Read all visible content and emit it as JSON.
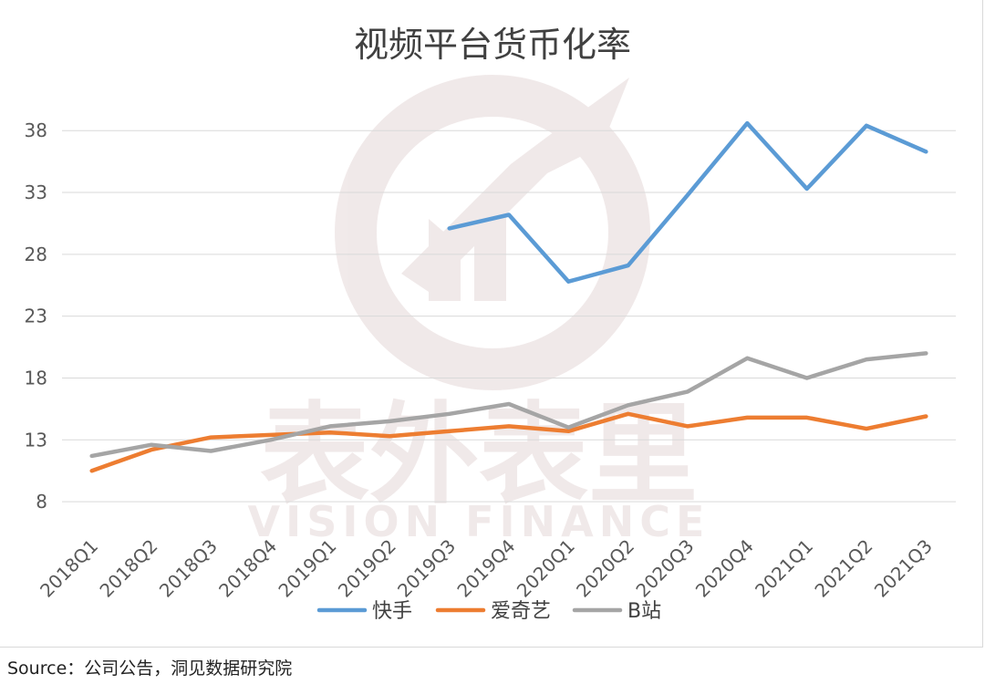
{
  "chart_data": {
    "type": "line",
    "title": "视频平台货币化率",
    "xlabel": "",
    "ylabel": "",
    "categories": [
      "2018Q1",
      "2018Q2",
      "2018Q3",
      "2018Q4",
      "2019Q1",
      "2019Q2",
      "2019Q3",
      "2019Q4",
      "2020Q1",
      "2020Q2",
      "2020Q3",
      "2020Q4",
      "2021Q1",
      "2021Q2",
      "2021Q3"
    ],
    "yticks": [
      8,
      13,
      18,
      23,
      28,
      33,
      38
    ],
    "ylim": [
      5.5,
      42
    ],
    "grid": true,
    "legend_position": "bottom",
    "series": [
      {
        "name": "快手",
        "color": "#5b9bd5",
        "values": [
          null,
          null,
          null,
          null,
          null,
          null,
          30.1,
          31.2,
          25.8,
          27.1,
          32.8,
          38.6,
          33.3,
          38.4,
          36.3
        ]
      },
      {
        "name": "爱奇艺",
        "color": "#ed7d31",
        "values": [
          10.5,
          12.2,
          13.2,
          13.4,
          13.6,
          13.3,
          13.7,
          14.1,
          13.7,
          15.1,
          14.1,
          14.8,
          14.8,
          13.9,
          14.9
        ]
      },
      {
        "name": "B站",
        "color": "#a5a5a5",
        "values": [
          11.7,
          12.6,
          12.1,
          13.0,
          14.1,
          14.5,
          15.1,
          15.9,
          14.0,
          15.8,
          16.9,
          19.6,
          18.0,
          19.5,
          20.0
        ]
      }
    ]
  },
  "watermark": {
    "text_cn": "表外表里",
    "text_en": "VISION FINANCE"
  },
  "source": "Source：公司公告，洞见数据研究院"
}
